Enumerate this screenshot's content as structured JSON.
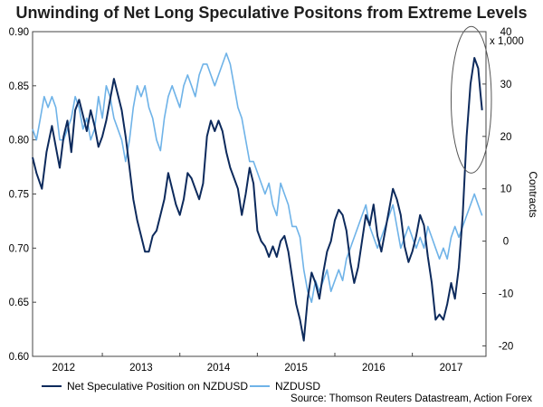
{
  "title": "Unwinding of Net Long Speculative Positons from Extreme Levels",
  "source": "Source: Thomson Reuters Datastream, Action Forex",
  "chart_data": {
    "type": "line",
    "title": "Unwinding of Net Long Speculative Positons from Extreme Levels",
    "x_labels": [
      "2012",
      "2013",
      "2014",
      "2015",
      "2016",
      "2017"
    ],
    "x_label_positions": [
      2012.0,
      2013.0,
      2014.0,
      2015.0,
      2016.0,
      2017.0
    ],
    "x_ticks": [
      2012.5,
      2013.5,
      2014.5,
      2015.5,
      2016.5
    ],
    "xlim": [
      2011.6,
      2017.45
    ],
    "y_left": {
      "lim": [
        0.6,
        0.9
      ],
      "ticks": [
        "0.60",
        "0.65",
        "0.70",
        "0.75",
        "0.80",
        "0.85",
        "0.90"
      ]
    },
    "y_right": {
      "lim": [
        -22,
        40
      ],
      "ticks": [
        "-20",
        "-10",
        "0",
        "10",
        "20",
        "30",
        "40"
      ],
      "label": "Contracts",
      "unit": "x 1,000"
    },
    "series": [
      {
        "name": "Net Speculative Position on NZDUSD",
        "axis": "right",
        "color": "#0d2a5c",
        "points": [
          [
            2011.6,
            16
          ],
          [
            2011.65,
            13
          ],
          [
            2011.72,
            10
          ],
          [
            2011.78,
            17
          ],
          [
            2011.85,
            22
          ],
          [
            2011.9,
            18
          ],
          [
            2011.95,
            14
          ],
          [
            2012.0,
            20
          ],
          [
            2012.05,
            23
          ],
          [
            2012.1,
            17
          ],
          [
            2012.15,
            25
          ],
          [
            2012.2,
            27
          ],
          [
            2012.25,
            24
          ],
          [
            2012.3,
            21
          ],
          [
            2012.35,
            25
          ],
          [
            2012.4,
            22
          ],
          [
            2012.45,
            18
          ],
          [
            2012.5,
            20
          ],
          [
            2012.55,
            23
          ],
          [
            2012.6,
            27
          ],
          [
            2012.65,
            31
          ],
          [
            2012.7,
            28
          ],
          [
            2012.75,
            25
          ],
          [
            2012.8,
            20
          ],
          [
            2012.85,
            14
          ],
          [
            2012.9,
            8
          ],
          [
            2012.95,
            4
          ],
          [
            2013.0,
            1
          ],
          [
            2013.05,
            -2
          ],
          [
            2013.1,
            -2
          ],
          [
            2013.15,
            1
          ],
          [
            2013.2,
            2
          ],
          [
            2013.25,
            5
          ],
          [
            2013.3,
            8
          ],
          [
            2013.35,
            13
          ],
          [
            2013.4,
            10
          ],
          [
            2013.45,
            7
          ],
          [
            2013.5,
            5
          ],
          [
            2013.55,
            8
          ],
          [
            2013.6,
            13
          ],
          [
            2013.65,
            12
          ],
          [
            2013.7,
            10
          ],
          [
            2013.75,
            8
          ],
          [
            2013.8,
            11
          ],
          [
            2013.85,
            20
          ],
          [
            2013.9,
            23
          ],
          [
            2013.95,
            21
          ],
          [
            2014.0,
            23
          ],
          [
            2014.05,
            21
          ],
          [
            2014.1,
            17
          ],
          [
            2014.15,
            14
          ],
          [
            2014.2,
            12
          ],
          [
            2014.25,
            10
          ],
          [
            2014.3,
            5
          ],
          [
            2014.35,
            9
          ],
          [
            2014.4,
            14
          ],
          [
            2014.45,
            11
          ],
          [
            2014.5,
            2
          ],
          [
            2014.55,
            0
          ],
          [
            2014.6,
            -1
          ],
          [
            2014.65,
            -3
          ],
          [
            2014.7,
            -1
          ],
          [
            2014.75,
            -3
          ],
          [
            2014.8,
            0
          ],
          [
            2014.85,
            1
          ],
          [
            2014.9,
            -2
          ],
          [
            2014.95,
            -7
          ],
          [
            2015.0,
            -12
          ],
          [
            2015.05,
            -15
          ],
          [
            2015.1,
            -19
          ],
          [
            2015.15,
            -11
          ],
          [
            2015.2,
            -6
          ],
          [
            2015.25,
            -8
          ],
          [
            2015.3,
            -11
          ],
          [
            2015.35,
            -6
          ],
          [
            2015.4,
            -2
          ],
          [
            2015.45,
            0
          ],
          [
            2015.5,
            4
          ],
          [
            2015.55,
            6
          ],
          [
            2015.6,
            5
          ],
          [
            2015.65,
            2
          ],
          [
            2015.7,
            -4
          ],
          [
            2015.75,
            -8
          ],
          [
            2015.8,
            -5
          ],
          [
            2015.85,
            0
          ],
          [
            2015.9,
            5
          ],
          [
            2015.95,
            3
          ],
          [
            2016.0,
            7
          ],
          [
            2016.05,
            1
          ],
          [
            2016.1,
            -2
          ],
          [
            2016.15,
            2
          ],
          [
            2016.2,
            6
          ],
          [
            2016.25,
            10
          ],
          [
            2016.3,
            8
          ],
          [
            2016.35,
            5
          ],
          [
            2016.4,
            -1
          ],
          [
            2016.45,
            -4
          ],
          [
            2016.5,
            -2
          ],
          [
            2016.55,
            1
          ],
          [
            2016.6,
            5
          ],
          [
            2016.65,
            3
          ],
          [
            2016.7,
            -3
          ],
          [
            2016.75,
            -8
          ],
          [
            2016.8,
            -15
          ],
          [
            2016.85,
            -14
          ],
          [
            2016.9,
            -15
          ],
          [
            2016.95,
            -12
          ],
          [
            2017.0,
            -8
          ],
          [
            2017.05,
            -11
          ],
          [
            2017.1,
            -5
          ],
          [
            2017.15,
            5
          ],
          [
            2017.2,
            20
          ],
          [
            2017.25,
            30
          ],
          [
            2017.3,
            35
          ],
          [
            2017.35,
            33
          ],
          [
            2017.38,
            28
          ],
          [
            2017.4,
            25
          ]
        ]
      },
      {
        "name": "NZDUSD",
        "axis": "left",
        "color": "#6fb3e8",
        "points": [
          [
            2011.6,
            0.81
          ],
          [
            2011.65,
            0.8
          ],
          [
            2011.7,
            0.82
          ],
          [
            2011.75,
            0.84
          ],
          [
            2011.8,
            0.83
          ],
          [
            2011.85,
            0.84
          ],
          [
            2011.9,
            0.83
          ],
          [
            2011.95,
            0.8
          ],
          [
            2012.0,
            0.8
          ],
          [
            2012.05,
            0.81
          ],
          [
            2012.1,
            0.82
          ],
          [
            2012.15,
            0.84
          ],
          [
            2012.2,
            0.83
          ],
          [
            2012.25,
            0.81
          ],
          [
            2012.3,
            0.82
          ],
          [
            2012.35,
            0.8
          ],
          [
            2012.4,
            0.81
          ],
          [
            2012.45,
            0.84
          ],
          [
            2012.5,
            0.82
          ],
          [
            2012.55,
            0.85
          ],
          [
            2012.6,
            0.84
          ],
          [
            2012.65,
            0.82
          ],
          [
            2012.7,
            0.81
          ],
          [
            2012.75,
            0.8
          ],
          [
            2012.8,
            0.78
          ],
          [
            2012.85,
            0.8
          ],
          [
            2012.9,
            0.83
          ],
          [
            2012.95,
            0.85
          ],
          [
            2013.0,
            0.84
          ],
          [
            2013.05,
            0.85
          ],
          [
            2013.1,
            0.83
          ],
          [
            2013.15,
            0.82
          ],
          [
            2013.2,
            0.8
          ],
          [
            2013.25,
            0.79
          ],
          [
            2013.3,
            0.82
          ],
          [
            2013.35,
            0.84
          ],
          [
            2013.4,
            0.85
          ],
          [
            2013.45,
            0.84
          ],
          [
            2013.5,
            0.83
          ],
          [
            2013.55,
            0.85
          ],
          [
            2013.6,
            0.86
          ],
          [
            2013.65,
            0.85
          ],
          [
            2013.7,
            0.84
          ],
          [
            2013.75,
            0.86
          ],
          [
            2013.8,
            0.87
          ],
          [
            2013.85,
            0.87
          ],
          [
            2013.9,
            0.86
          ],
          [
            2013.95,
            0.85
          ],
          [
            2014.0,
            0.86
          ],
          [
            2014.05,
            0.87
          ],
          [
            2014.1,
            0.88
          ],
          [
            2014.15,
            0.87
          ],
          [
            2014.2,
            0.85
          ],
          [
            2014.25,
            0.83
          ],
          [
            2014.3,
            0.82
          ],
          [
            2014.35,
            0.8
          ],
          [
            2014.4,
            0.78
          ],
          [
            2014.45,
            0.78
          ],
          [
            2014.5,
            0.77
          ],
          [
            2014.55,
            0.76
          ],
          [
            2014.6,
            0.75
          ],
          [
            2014.65,
            0.76
          ],
          [
            2014.7,
            0.74
          ],
          [
            2014.75,
            0.73
          ],
          [
            2014.8,
            0.76
          ],
          [
            2014.85,
            0.75
          ],
          [
            2014.9,
            0.74
          ],
          [
            2014.95,
            0.72
          ],
          [
            2015.0,
            0.72
          ],
          [
            2015.05,
            0.71
          ],
          [
            2015.1,
            0.68
          ],
          [
            2015.15,
            0.66
          ],
          [
            2015.2,
            0.65
          ],
          [
            2015.25,
            0.67
          ],
          [
            2015.3,
            0.66
          ],
          [
            2015.35,
            0.67
          ],
          [
            2015.4,
            0.68
          ],
          [
            2015.45,
            0.66
          ],
          [
            2015.5,
            0.67
          ],
          [
            2015.55,
            0.68
          ],
          [
            2015.6,
            0.67
          ],
          [
            2015.65,
            0.69
          ],
          [
            2015.7,
            0.7
          ],
          [
            2015.75,
            0.71
          ],
          [
            2015.8,
            0.72
          ],
          [
            2015.85,
            0.73
          ],
          [
            2015.9,
            0.74
          ],
          [
            2015.95,
            0.72
          ],
          [
            2016.0,
            0.71
          ],
          [
            2016.05,
            0.7
          ],
          [
            2016.1,
            0.71
          ],
          [
            2016.15,
            0.72
          ],
          [
            2016.2,
            0.73
          ],
          [
            2016.25,
            0.74
          ],
          [
            2016.3,
            0.72
          ],
          [
            2016.35,
            0.7
          ],
          [
            2016.4,
            0.71
          ],
          [
            2016.45,
            0.72
          ],
          [
            2016.5,
            0.71
          ],
          [
            2016.55,
            0.7
          ],
          [
            2016.6,
            0.71
          ],
          [
            2016.65,
            0.7
          ],
          [
            2016.7,
            0.72
          ],
          [
            2016.75,
            0.71
          ],
          [
            2016.8,
            0.7
          ],
          [
            2016.85,
            0.69
          ],
          [
            2016.9,
            0.7
          ],
          [
            2016.95,
            0.69
          ],
          [
            2017.0,
            0.71
          ],
          [
            2017.05,
            0.72
          ],
          [
            2017.1,
            0.71
          ],
          [
            2017.15,
            0.72
          ],
          [
            2017.2,
            0.73
          ],
          [
            2017.25,
            0.74
          ],
          [
            2017.3,
            0.75
          ],
          [
            2017.35,
            0.74
          ],
          [
            2017.4,
            0.73
          ]
        ]
      }
    ],
    "annotation": {
      "type": "ellipse",
      "x": 2017.26,
      "y_right": 27,
      "rx_years": 0.26,
      "ry_contracts": 14
    }
  }
}
